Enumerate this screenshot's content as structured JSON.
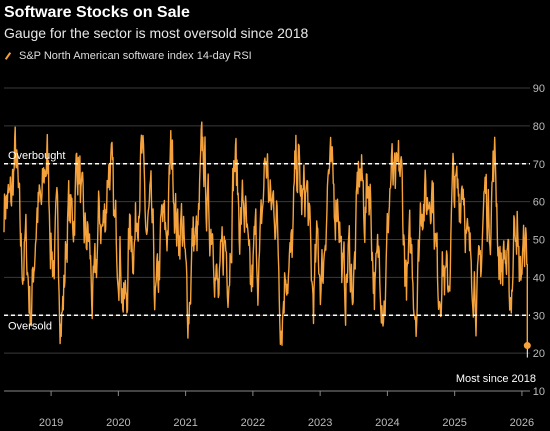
{
  "header": {
    "title": "Software Stocks on Sale",
    "subtitle": "Gauge for the sector is most oversold since 2018"
  },
  "colors": {
    "line": "#f5a23c",
    "background": "#000000",
    "grid": "#3a3a3a",
    "reference": "#ffffff"
  },
  "chart_data": {
    "type": "line",
    "series": [
      {
        "name": "S&P North American software index 14-day RSI",
        "description_x_range": [
          "2018-04",
          "2026-02"
        ]
      }
    ],
    "x_tick_labels": [
      "2019",
      "2020",
      "2021",
      "2022",
      "2023",
      "2024",
      "2025",
      "2026"
    ],
    "y_tick_labels": [
      "10",
      "20",
      "30",
      "40",
      "50",
      "60",
      "70",
      "80",
      "90"
    ],
    "ylim": [
      10,
      90
    ],
    "grid": true,
    "annotations": {
      "overbought": {
        "label": "Overbought",
        "value": 70
      },
      "oversold": {
        "label": "Oversold",
        "value": 30
      },
      "latest": {
        "label": "Most since 2018",
        "value": 22
      }
    }
  }
}
